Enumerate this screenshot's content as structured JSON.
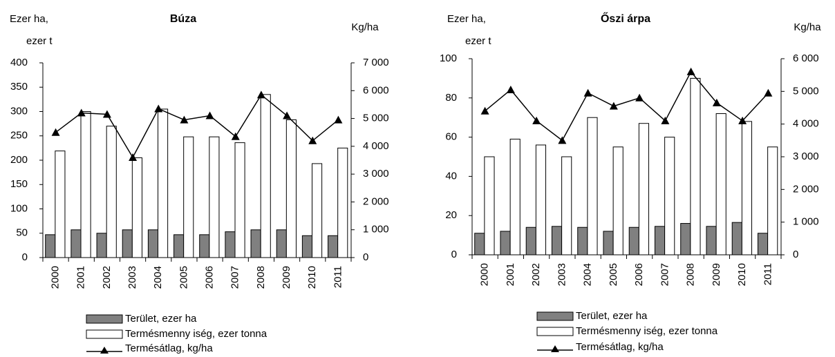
{
  "chart_data": [
    {
      "type": "bar-line",
      "title": "Búza",
      "y_label": [
        "Ezer ha,",
        "ezer t"
      ],
      "y2_label": "Kg/ha",
      "categories": [
        "2000",
        "2001",
        "2002",
        "2003",
        "2004",
        "2005",
        "2006",
        "2007",
        "2008",
        "2009",
        "2010",
        "2011"
      ],
      "series": [
        {
          "name": "Terület, ezer ha",
          "color": "#808080",
          "values": [
            47,
            57,
            50,
            57,
            57,
            47,
            47,
            53,
            57,
            57,
            45,
            45
          ]
        },
        {
          "name": "Termésmenny iség, ezer tonna",
          "color": "#ffffff",
          "values": [
            219,
            300,
            270,
            205,
            305,
            248,
            248,
            236,
            335,
            283,
            193,
            225
          ]
        },
        {
          "name": "Termésátlag, kg/ha",
          "color": "#000000",
          "axis": "y2",
          "values": [
            4500,
            5200,
            5150,
            3600,
            5350,
            4950,
            5100,
            4350,
            5850,
            5100,
            4200,
            4950
          ]
        }
      ],
      "ylim": [
        0,
        400
      ],
      "yticks": [
        0,
        50,
        100,
        150,
        200,
        250,
        300,
        350,
        400
      ],
      "y2lim": [
        0,
        7000
      ],
      "y2ticks": [
        0,
        {
          "value": 1000,
          "label": "1 000"
        },
        {
          "value": 2000,
          "label": "2 000"
        },
        {
          "value": 3000,
          "label": "3 000"
        },
        {
          "value": 4000,
          "label": "4 000"
        },
        {
          "value": 5000,
          "label": "5 000"
        },
        {
          "value": 6000,
          "label": "6 000"
        },
        {
          "value": 7000,
          "label": "7 000"
        }
      ]
    },
    {
      "type": "bar-line",
      "title": "Őszi árpa",
      "y_label": [
        "Ezer ha,",
        "ezer t"
      ],
      "y2_label": "Kg/ha",
      "categories": [
        "2000",
        "2001",
        "2002",
        "2003",
        "2004",
        "2005",
        "2006",
        "2007",
        "2008",
        "2009",
        "2010",
        "2011"
      ],
      "series": [
        {
          "name": "Terület, ezer ha",
          "color": "#808080",
          "values": [
            11,
            12,
            14,
            14.5,
            14,
            12,
            14,
            14.5,
            16,
            14.5,
            16.5,
            11
          ]
        },
        {
          "name": "Termésmenny iség, ezer tonna",
          "color": "#ffffff",
          "values": [
            50,
            59,
            56,
            50,
            70,
            55,
            67,
            60,
            90,
            72,
            68,
            55
          ]
        },
        {
          "name": "Termésátlag, kg/ha",
          "color": "#000000",
          "axis": "y2",
          "values": [
            4400,
            5050,
            4100,
            3500,
            4950,
            4550,
            4800,
            4100,
            5600,
            4650,
            4100,
            4950
          ]
        }
      ],
      "ylim": [
        0,
        100
      ],
      "yticks": [
        0,
        20,
        40,
        60,
        80,
        100
      ],
      "y2lim": [
        0,
        6000
      ],
      "y2ticks": [
        0,
        {
          "value": 1000,
          "label": "1 000"
        },
        {
          "value": 2000,
          "label": "2 000"
        },
        {
          "value": 3000,
          "label": "3 000"
        },
        {
          "value": 4000,
          "label": "4 000"
        },
        {
          "value": 5000,
          "label": "5 000"
        },
        {
          "value": 6000,
          "label": "6 000"
        }
      ]
    }
  ]
}
